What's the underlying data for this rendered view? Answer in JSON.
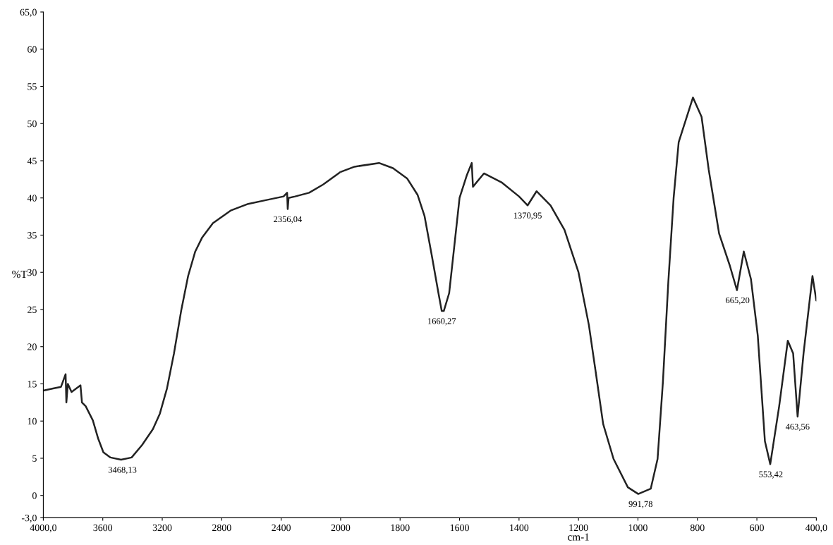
{
  "chart_data": [
    {
      "type": "line",
      "ylabel": "%T",
      "series": [
        {
          "color": "#222222",
          "x": [
            4000,
            3929,
            3881,
            3850,
            3845,
            3835,
            3810,
            3750,
            3740,
            3715,
            3667,
            3632,
            3596,
            3548,
            3477,
            3406,
            3335,
            3263,
            3216,
            3168,
            3121,
            3073,
            3026,
            2978,
            2931,
            2859,
            2740,
            2622,
            2503,
            2384,
            2360,
            2356,
            2350,
            2306,
            2212,
            2118,
            2000
          ],
          "values": [
            14.1,
            14.4,
            14.6,
            16.3,
            12.5,
            15.0,
            13.9,
            14.8,
            12.5,
            12.0,
            10.1,
            7.7,
            5.8,
            5.1,
            4.8,
            5.1,
            6.8,
            8.9,
            11.0,
            14.4,
            19.1,
            24.8,
            29.5,
            32.8,
            34.7,
            36.6,
            38.3,
            39.2,
            39.7,
            40.2,
            40.7,
            38.5,
            40.0,
            40.2,
            40.7,
            41.8,
            43.5
          ]
        }
      ],
      "annotations": [
        {
          "text": "3468,13",
          "x": 3468,
          "y": 4.8
        },
        {
          "text": "2356,04",
          "x": 2356,
          "y": 38.5
        }
      ],
      "xlim": [
        4000,
        2000
      ],
      "xticks": [
        {
          "value": 4000,
          "label": "4000,0"
        },
        3600,
        3200,
        2800,
        2400
      ],
      "ylim": [
        -3,
        65
      ],
      "yticks": [
        {
          "value": -3,
          "label": "-3,0"
        },
        0,
        5,
        10,
        15,
        20,
        25,
        30,
        35,
        40,
        45,
        50,
        55,
        60,
        {
          "value": 65,
          "label": "65,0"
        }
      ],
      "grid": false,
      "legend": false,
      "marker": "none",
      "line_style": "solid"
    },
    {
      "type": "line",
      "xlabel": "cm-1",
      "series": [
        {
          "color": "#222222",
          "x": [
            2000,
            1953,
            1871,
            1824,
            1776,
            1741,
            1718,
            1694,
            1671,
            1660,
            1653,
            1635,
            1618,
            1600,
            1576,
            1559,
            1555,
            1518,
            1459,
            1400,
            1371,
            1341,
            1294,
            1247,
            1200,
            1165,
            1141,
            1117,
            1082,
            1034,
            999,
            957,
            934,
            916,
            898,
            880,
            863,
            815,
            786,
            762,
            727,
            691,
            667,
            644,
            620,
            597,
            573,
            555,
            525,
            496,
            478,
            463,
            443,
            413,
            400
          ],
          "values": [
            43.5,
            44.2,
            44.7,
            44.0,
            42.6,
            40.4,
            37.6,
            32.4,
            27.2,
            24.8,
            24.8,
            27.2,
            33.4,
            40.0,
            43.0,
            44.7,
            41.5,
            43.3,
            42.1,
            40.2,
            39.0,
            40.9,
            39.0,
            35.7,
            30.0,
            22.9,
            16.3,
            9.6,
            4.9,
            1.1,
            0.2,
            0.9,
            4.9,
            15.3,
            28.6,
            40.0,
            47.5,
            53.5,
            50.9,
            43.8,
            35.2,
            30.9,
            27.6,
            32.8,
            29.1,
            21.5,
            7.3,
            4.2,
            12.0,
            20.8,
            19.1,
            10.6,
            19.1,
            29.5,
            26.2
          ]
        }
      ],
      "annotations": [
        {
          "text": "1660,27",
          "x": 1660,
          "y": 24.8
        },
        {
          "text": "1370,95",
          "x": 1371,
          "y": 39.0
        },
        {
          "text": "991,78",
          "x": 991,
          "y": 0.2
        },
        {
          "text": "665,20",
          "x": 665,
          "y": 27.6
        },
        {
          "text": "553,42",
          "x": 553,
          "y": 4.2
        },
        {
          "text": "463,56",
          "x": 463,
          "y": 10.6
        }
      ],
      "xlim": [
        2000,
        400
      ],
      "xticks": [
        2000,
        1800,
        1600,
        1400,
        1200,
        1000,
        800,
        600,
        {
          "value": 400,
          "label": "400,0"
        }
      ],
      "ylim": [
        -3,
        65
      ],
      "tick_labels": "x",
      "grid": false,
      "legend": false,
      "marker": "none",
      "line_style": "solid"
    }
  ]
}
